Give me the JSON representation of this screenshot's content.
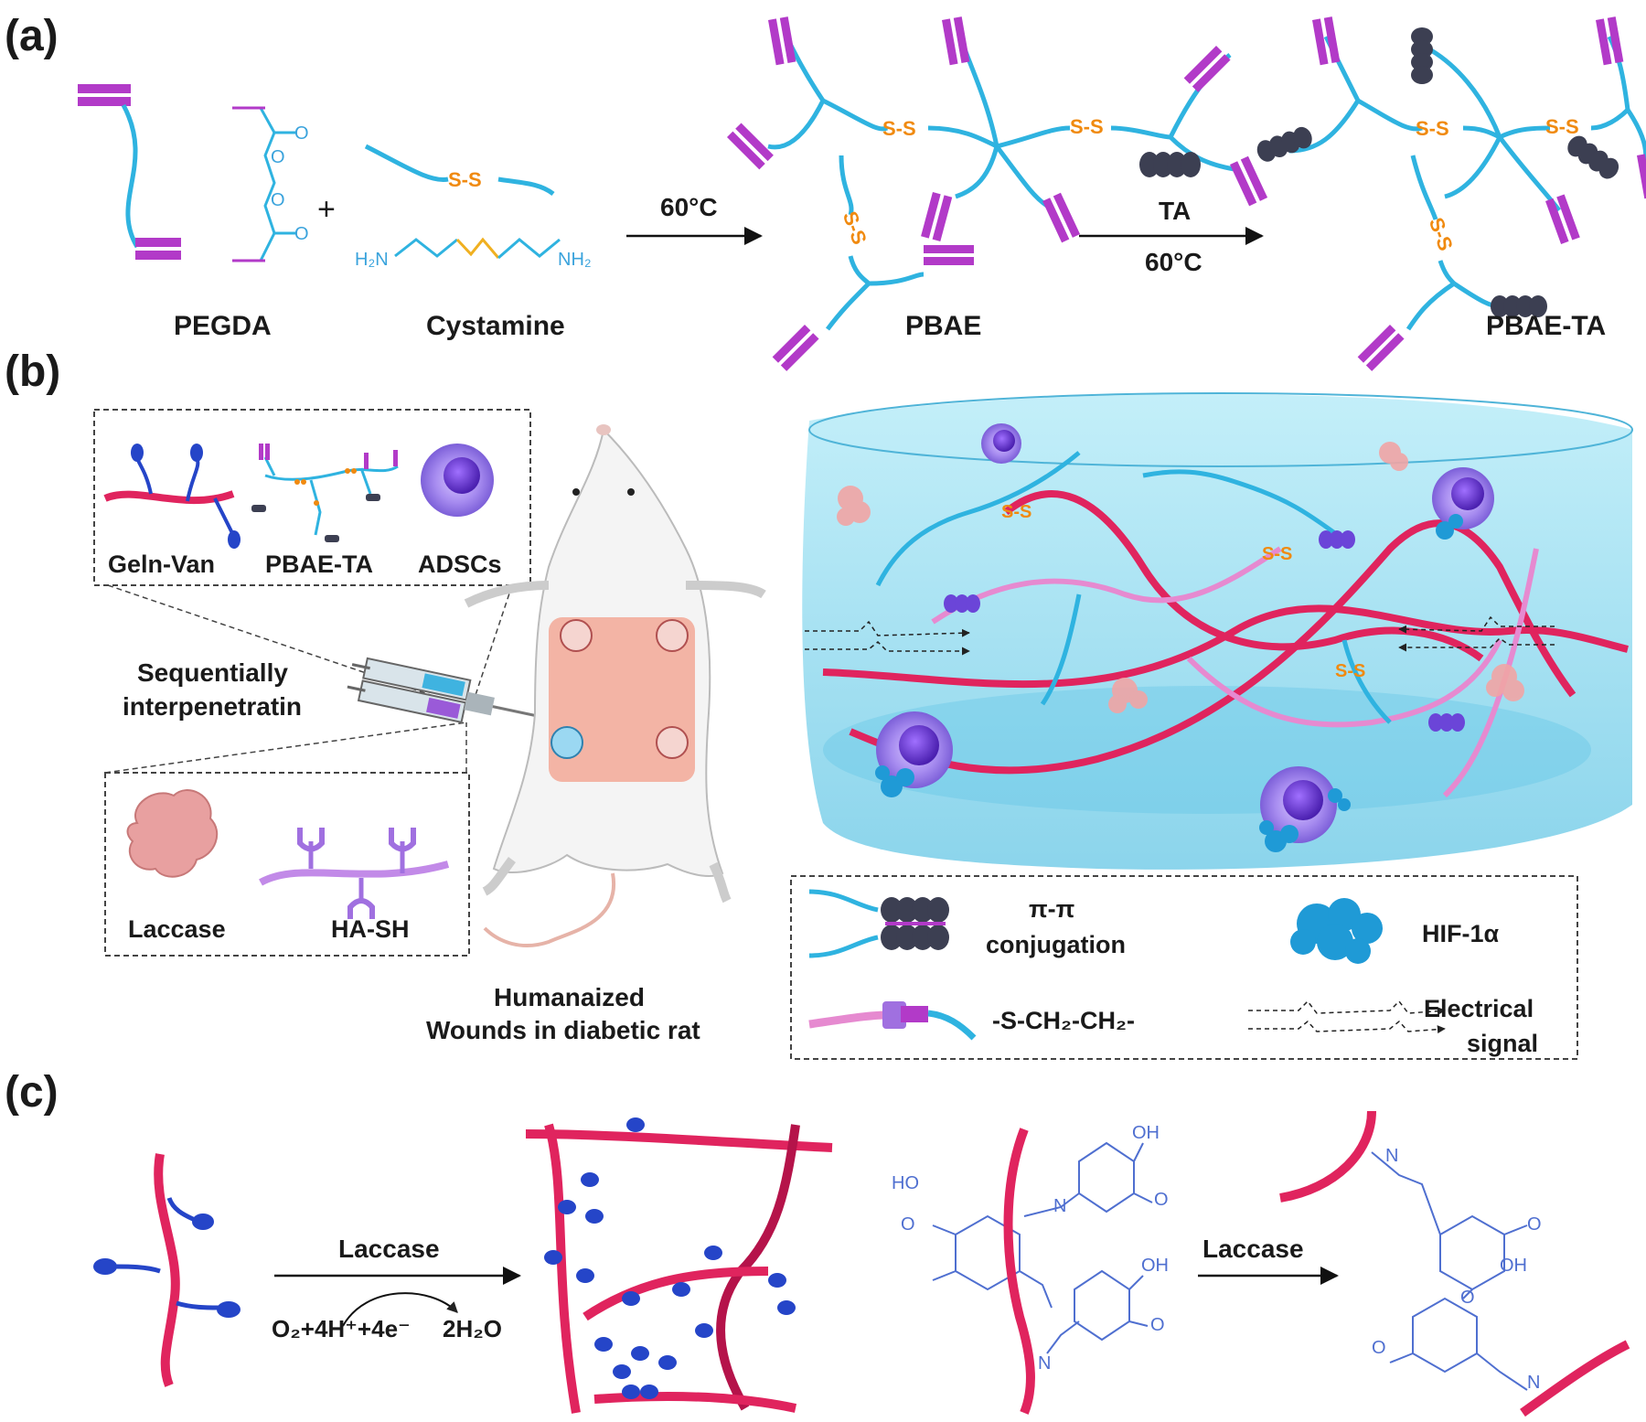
{
  "panels": {
    "a": {
      "label": "(a)",
      "pegda": "PEGDA",
      "cystamine": "Cystamine",
      "plus": "+",
      "arrow1_text": "60°C",
      "pbae": "PBAE",
      "arrow2_top": "TA",
      "arrow2_bottom": "60°C",
      "pbae_ta": "PBAE-TA",
      "ss": "S-S",
      "h2n": "H₂N",
      "nh2": "NH₂",
      "o": "O"
    },
    "b": {
      "label": "(b)",
      "top_box": [
        "Geln-Van",
        "PBAE-TA",
        "ADSCs"
      ],
      "syringe_line1": "Sequentially",
      "syringe_line2": "interpenetratin",
      "bottom_box": [
        "Laccase",
        "HA-SH"
      ],
      "rat_line1": "Humanaized",
      "rat_line2": "Wounds in diabetic rat",
      "legend": {
        "pi_line1": "π-π",
        "pi_line2": "conjugation",
        "hif": "HIF-1α",
        "thioether": "-S-CH₂-CH₂-",
        "elec_line1": "Electrical",
        "elec_line2": "signal"
      }
    },
    "c": {
      "label": "(c)",
      "laccase1": "Laccase",
      "reaction": "O₂+4H⁺+4e⁻",
      "water": "2H₂O",
      "laccase2": "Laccase",
      "chem": {
        "oh": "OH",
        "ho": "HO",
        "o": "O",
        "n": "N"
      }
    }
  },
  "colors": {
    "pink_chain": "#e0245e",
    "light_pink_chain": "#e68ad0",
    "cyan_chain": "#2fb3e0",
    "magenta_block": "#b23ac8",
    "ss_orange": "#f08a10",
    "ta_dark": "#3c3f52",
    "blue_bulb": "#2545c8",
    "hydrogel": "#9fdcf0"
  }
}
